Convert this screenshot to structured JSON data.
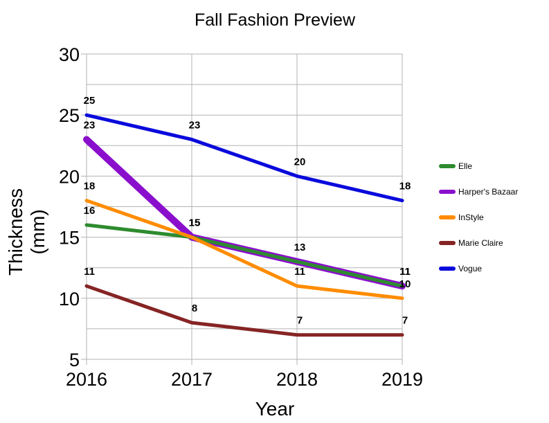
{
  "chart_data": {
    "type": "line",
    "title": "Fall Fashion Preview",
    "xlabel": "Year",
    "ylabel": [
      "Thickness",
      "(mm)"
    ],
    "x": [
      "2016",
      "2017",
      "2018",
      "2019"
    ],
    "ylim": [
      5,
      30
    ],
    "yticks": [
      "5",
      "10",
      "15",
      "20",
      "25",
      "30"
    ],
    "grid": true,
    "legend_position": "right",
    "series": [
      {
        "name": "Elle",
        "values": [
          16,
          15,
          13,
          11
        ],
        "color": "#2e8b2e",
        "labels": [
          "16",
          "15",
          "13",
          "11"
        ]
      },
      {
        "name": "Harper's Bazaar",
        "values": [
          23,
          15,
          13,
          11
        ],
        "color": "#8a0fcc",
        "labels": [
          "23",
          "15",
          "",
          "11"
        ]
      },
      {
        "name": "InStyle",
        "values": [
          18,
          15,
          11,
          10
        ],
        "color": "#ff8c00",
        "labels": [
          "18",
          "15",
          "11",
          "10"
        ]
      },
      {
        "name": "Marie Claire",
        "values": [
          11,
          8,
          7,
          7
        ],
        "color": "#862424",
        "labels": [
          "11",
          "8",
          "7",
          "7"
        ]
      },
      {
        "name": "Vogue",
        "values": [
          25,
          23,
          20,
          18
        ],
        "color": "#0a0adc",
        "labels": [
          "25",
          "23",
          "20",
          "18"
        ]
      }
    ]
  }
}
